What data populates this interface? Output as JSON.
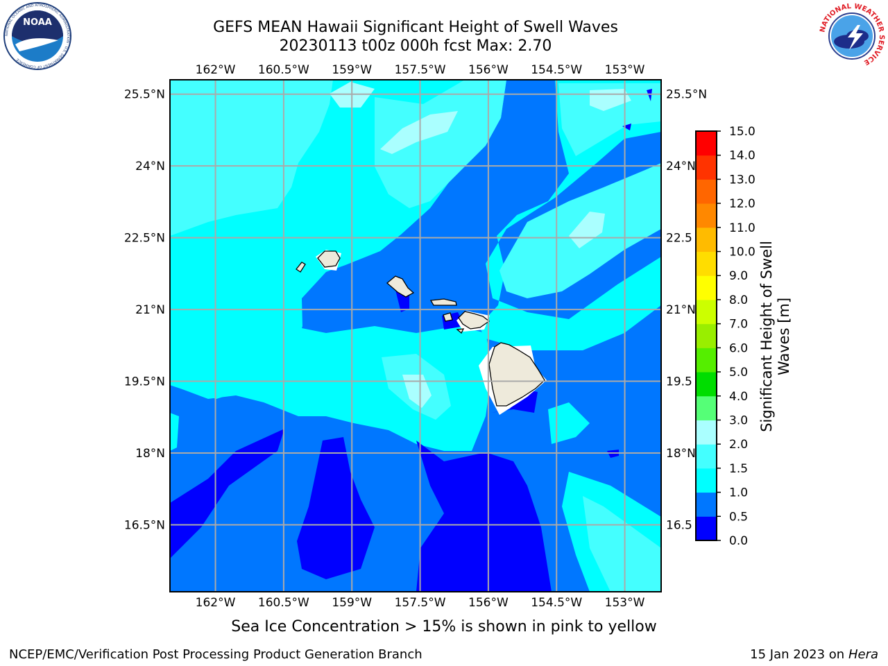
{
  "header": {
    "title_line1": "GEFS MEAN Hawaii Significant Height of Swell Waves",
    "title_line2": "20230113 t00z 000h fcst   Max: 2.70"
  },
  "logos": {
    "left": {
      "name": "noaa-logo",
      "text": "NOAA",
      "ring_text": "NATIONAL OCEANIC AND ATMOSPHERIC ADMINISTRATION · U.S. DEPARTMENT OF COMMERCE"
    },
    "right": {
      "name": "nws-logo",
      "ring_text": "NATIONAL WEATHER SERVICE"
    }
  },
  "map": {
    "projection": "equirectangular",
    "lon_range": [
      -163.0,
      -152.2
    ],
    "lat_range": [
      15.1,
      25.8
    ],
    "lon_ticks": [
      "162°W",
      "160.5°W",
      "159°W",
      "157.5°W",
      "156°W",
      "154.5°W",
      "153°W"
    ],
    "lon_tick_values": [
      -162,
      -160.5,
      -159,
      -157.5,
      -156,
      -154.5,
      -153
    ],
    "lat_ticks": [
      "25.5°N",
      "24°N",
      "22.5°N",
      "21°N",
      "19.5°N",
      "18°N",
      "16.5°N"
    ],
    "lat_tick_values": [
      25.5,
      24,
      22.5,
      21,
      19.5,
      18,
      16.5
    ],
    "lat_ticks_right": [
      "25.5°N",
      "24°N",
      "22.5",
      "21°N",
      "19.5",
      "18°N",
      "16.5"
    ],
    "grid": true,
    "land_color": "#eeeadb",
    "islands": [
      "Niihau",
      "Kauai",
      "Oahu",
      "Molokai",
      "Maui",
      "Lanai",
      "Kahoolawe",
      "Hawaii"
    ]
  },
  "colorbar": {
    "label": "Significant Height of Swell Waves [m]",
    "levels": [
      "0.0",
      "0.5",
      "1.0",
      "1.5",
      "2.0",
      "3.0",
      "4.0",
      "5.0",
      "6.0",
      "7.0",
      "8.0",
      "9.0",
      "10.0",
      "11.0",
      "12.0",
      "13.0",
      "14.0",
      "15.0"
    ],
    "colors": [
      "#0000ff",
      "#0077ff",
      "#00ffff",
      "#44ffff",
      "#aaffff",
      "#55ff77",
      "#00dd00",
      "#55ee00",
      "#99ee00",
      "#ccff00",
      "#ffff00",
      "#ffdd00",
      "#ffbb00",
      "#ff8800",
      "#ff6600",
      "#ff3300",
      "#ff0000"
    ]
  },
  "footer": {
    "subtitle": "Sea Ice Concentration > 15% is shown in pink to yellow",
    "left": "NCEP/EMC/Verification Post Processing Product Generation Branch",
    "right_prefix": "15 Jan 2023 on ",
    "right_host": "Hera"
  }
}
